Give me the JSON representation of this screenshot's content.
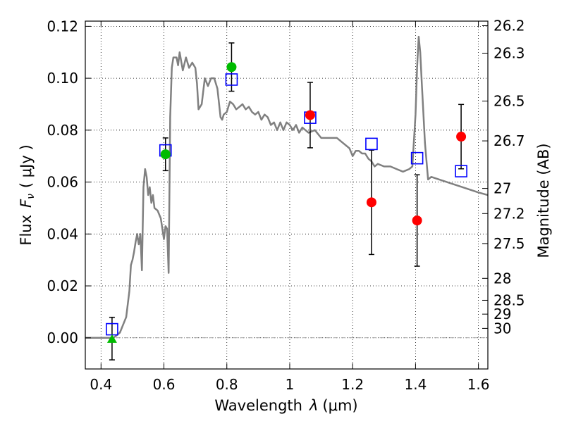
{
  "chart_data": {
    "type": "scatter",
    "xlabel": "Wavelength",
    "xlabel_symbol": "λ",
    "xlabel_unit": "(μm)",
    "ylabel": "Flux",
    "ylabel_symbol": "F",
    "ylabel_sub": "ν",
    "ylabel_unit": "( μJy )",
    "y2label": "Magnitude (AB)",
    "xlim": [
      0.35,
      1.63
    ],
    "ylim": [
      -0.012,
      0.122
    ],
    "grid": true,
    "grid_style": "dotted",
    "x_ticks": [
      0.4,
      0.6,
      0.8,
      1.0,
      1.2,
      1.4,
      1.6
    ],
    "x_tick_labels": [
      "0.4",
      "0.6",
      "0.8",
      "1",
      "1.2",
      "1.4",
      "1.6"
    ],
    "y_ticks": [
      0.0,
      0.02,
      0.04,
      0.06,
      0.08,
      0.1,
      0.12
    ],
    "y_tick_labels": [
      "0.00",
      "0.02",
      "0.04",
      "0.06",
      "0.08",
      "0.10",
      "0.12"
    ],
    "mag_ticks": [
      {
        "mag": 26.2,
        "label": "26.2"
      },
      {
        "mag": 26.3,
        "label": "26.3"
      },
      {
        "mag": 26.5,
        "label": "26.5"
      },
      {
        "mag": 26.7,
        "label": "26.7"
      },
      {
        "mag": 27.0,
        "label": "27"
      },
      {
        "mag": 27.2,
        "label": "27.2"
      },
      {
        "mag": 27.5,
        "label": "27.5"
      },
      {
        "mag": 28.0,
        "label": "28"
      },
      {
        "mag": 28.5,
        "label": "28.5"
      },
      {
        "mag": 29.0,
        "label": "29"
      },
      {
        "mag": 30.0,
        "label": "30"
      }
    ],
    "colors": {
      "sed": "#808080",
      "model": "#0000ff",
      "green": "#00bb00",
      "red": "#ff0000",
      "errorbar": "#000000",
      "zero_line": "#808080"
    },
    "series": [
      {
        "key": "sed",
        "type": "line",
        "points": [
          [
            0.35,
            0.0
          ],
          [
            0.39,
            0.0
          ],
          [
            0.44,
            0.0
          ],
          [
            0.46,
            0.002
          ],
          [
            0.48,
            0.008
          ],
          [
            0.49,
            0.018
          ],
          [
            0.495,
            0.028
          ],
          [
            0.5,
            0.03
          ],
          [
            0.505,
            0.033
          ],
          [
            0.51,
            0.037
          ],
          [
            0.515,
            0.04
          ],
          [
            0.52,
            0.036
          ],
          [
            0.525,
            0.04
          ],
          [
            0.53,
            0.026
          ],
          [
            0.535,
            0.058
          ],
          [
            0.54,
            0.065
          ],
          [
            0.545,
            0.062
          ],
          [
            0.55,
            0.055
          ],
          [
            0.555,
            0.058
          ],
          [
            0.56,
            0.052
          ],
          [
            0.565,
            0.055
          ],
          [
            0.57,
            0.05
          ],
          [
            0.58,
            0.049
          ],
          [
            0.59,
            0.046
          ],
          [
            0.6,
            0.038
          ],
          [
            0.605,
            0.043
          ],
          [
            0.61,
            0.042
          ],
          [
            0.615,
            0.025
          ],
          [
            0.62,
            0.085
          ],
          [
            0.625,
            0.104
          ],
          [
            0.63,
            0.108
          ],
          [
            0.64,
            0.108
          ],
          [
            0.645,
            0.105
          ],
          [
            0.65,
            0.11
          ],
          [
            0.66,
            0.103
          ],
          [
            0.67,
            0.108
          ],
          [
            0.68,
            0.104
          ],
          [
            0.69,
            0.106
          ],
          [
            0.7,
            0.104
          ],
          [
            0.705,
            0.098
          ],
          [
            0.71,
            0.088
          ],
          [
            0.72,
            0.09
          ],
          [
            0.73,
            0.1
          ],
          [
            0.74,
            0.097
          ],
          [
            0.75,
            0.1
          ],
          [
            0.76,
            0.1
          ],
          [
            0.77,
            0.096
          ],
          [
            0.78,
            0.085
          ],
          [
            0.785,
            0.084
          ],
          [
            0.79,
            0.086
          ],
          [
            0.8,
            0.087
          ],
          [
            0.81,
            0.091
          ],
          [
            0.82,
            0.09
          ],
          [
            0.83,
            0.088
          ],
          [
            0.84,
            0.089
          ],
          [
            0.85,
            0.09
          ],
          [
            0.86,
            0.088
          ],
          [
            0.87,
            0.089
          ],
          [
            0.88,
            0.087
          ],
          [
            0.89,
            0.086
          ],
          [
            0.9,
            0.087
          ],
          [
            0.91,
            0.084
          ],
          [
            0.92,
            0.086
          ],
          [
            0.93,
            0.085
          ],
          [
            0.94,
            0.082
          ],
          [
            0.95,
            0.083
          ],
          [
            0.96,
            0.08
          ],
          [
            0.97,
            0.083
          ],
          [
            0.98,
            0.08
          ],
          [
            0.99,
            0.083
          ],
          [
            1.0,
            0.082
          ],
          [
            1.01,
            0.08
          ],
          [
            1.02,
            0.082
          ],
          [
            1.03,
            0.079
          ],
          [
            1.04,
            0.081
          ],
          [
            1.05,
            0.08
          ],
          [
            1.06,
            0.079
          ],
          [
            1.08,
            0.08
          ],
          [
            1.1,
            0.077
          ],
          [
            1.12,
            0.077
          ],
          [
            1.15,
            0.077
          ],
          [
            1.17,
            0.075
          ],
          [
            1.19,
            0.073
          ],
          [
            1.2,
            0.07
          ],
          [
            1.21,
            0.072
          ],
          [
            1.22,
            0.072
          ],
          [
            1.23,
            0.071
          ],
          [
            1.24,
            0.071
          ],
          [
            1.25,
            0.069
          ],
          [
            1.26,
            0.068
          ],
          [
            1.27,
            0.066
          ],
          [
            1.28,
            0.067
          ],
          [
            1.3,
            0.066
          ],
          [
            1.32,
            0.066
          ],
          [
            1.34,
            0.065
          ],
          [
            1.36,
            0.064
          ],
          [
            1.38,
            0.065
          ],
          [
            1.39,
            0.066
          ],
          [
            1.4,
            0.086
          ],
          [
            1.405,
            0.104
          ],
          [
            1.41,
            0.116
          ],
          [
            1.415,
            0.11
          ],
          [
            1.42,
            0.098
          ],
          [
            1.43,
            0.075
          ],
          [
            1.44,
            0.061
          ],
          [
            1.45,
            0.062
          ],
          [
            1.5,
            0.06
          ],
          [
            1.55,
            0.058
          ],
          [
            1.6,
            0.056
          ],
          [
            1.63,
            0.055
          ]
        ]
      },
      {
        "key": "model",
        "type": "open-square",
        "points": [
          [
            0.435,
            0.0033
          ],
          [
            0.605,
            0.0722
          ],
          [
            0.815,
            0.0995
          ],
          [
            1.065,
            0.0848
          ],
          [
            1.26,
            0.0747
          ],
          [
            1.405,
            0.0692
          ],
          [
            1.545,
            0.0642
          ]
        ]
      },
      {
        "key": "green",
        "type": "filled-circle",
        "points": [
          [
            0.605,
            0.0707
          ],
          [
            0.815,
            0.1043
          ],
          [
            0.435,
            -0.0003
          ]
        ],
        "errors": [
          0.0063,
          0.0093,
          0.0082
        ]
      },
      {
        "key": "red",
        "type": "filled-circle",
        "points": [
          [
            1.065,
            0.0858
          ],
          [
            1.26,
            0.0522
          ],
          [
            1.405,
            0.0452
          ],
          [
            1.545,
            0.0775
          ]
        ],
        "errors": [
          0.0126,
          0.0201,
          0.0176,
          0.0124
        ]
      }
    ]
  }
}
